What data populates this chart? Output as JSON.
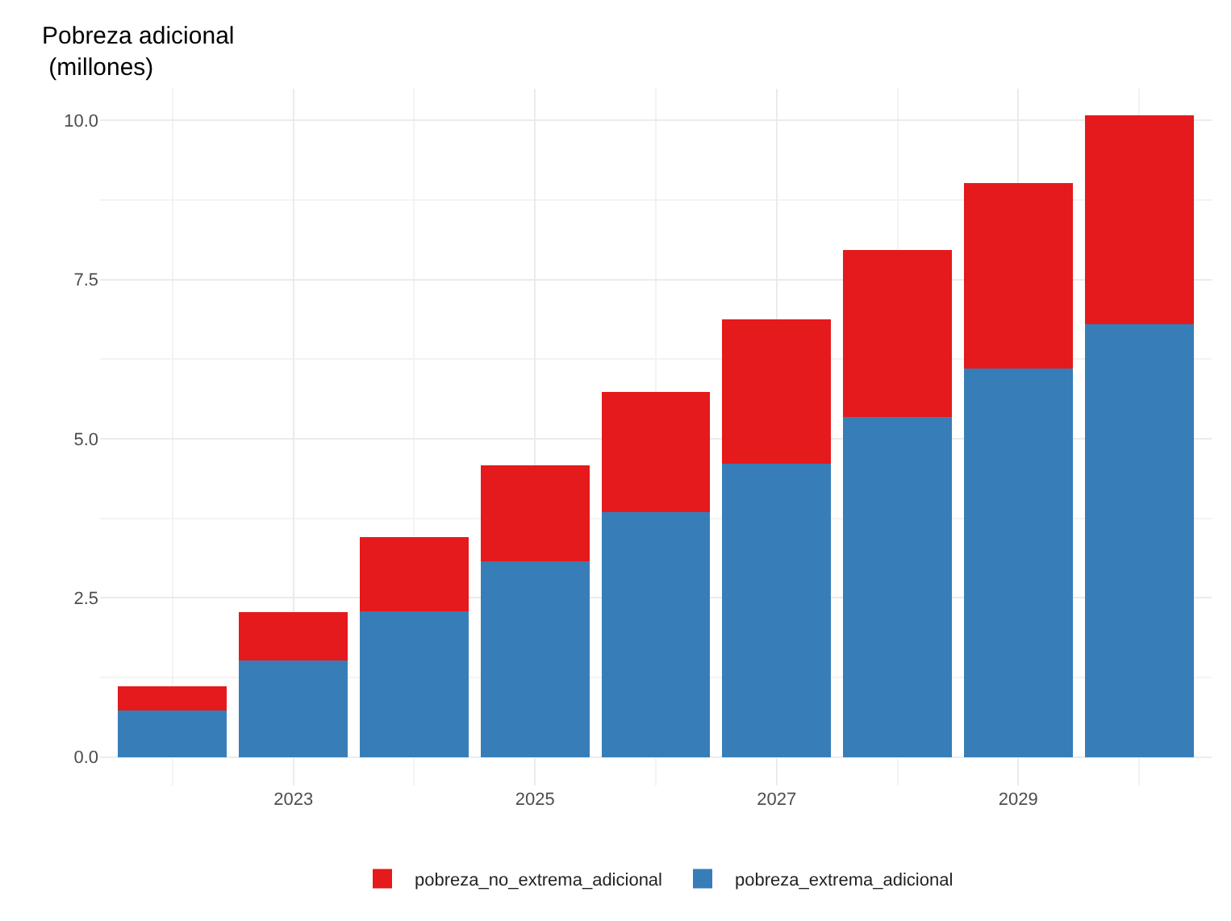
{
  "chart_data": {
    "type": "bar",
    "ylabel": "Pobreza adicional\n (millones)",
    "x": [
      2022,
      2023,
      2024,
      2025,
      2026,
      2027,
      2028,
      2029,
      2030
    ],
    "series": [
      {
        "name": "pobreza_extrema_adicional",
        "color": "#377eb8",
        "values": [
          0.73,
          1.51,
          2.29,
          3.07,
          3.85,
          4.61,
          5.34,
          6.1,
          6.8
        ]
      },
      {
        "name": "pobreza_no_extrema_adicional",
        "color": "#e41a1c",
        "values": [
          0.38,
          0.76,
          1.16,
          1.51,
          1.89,
          2.27,
          2.62,
          2.92,
          3.28
        ]
      }
    ],
    "stacked": true,
    "xlim": [
      2021.4,
      2030.6
    ],
    "xticks": [
      2023,
      2025,
      2027,
      2029
    ],
    "ylim": [
      -0.45,
      10.5
    ],
    "yticks": [
      {
        "value": 0,
        "label": "0.0"
      },
      {
        "value": 2.5,
        "label": "2.5"
      },
      {
        "value": 5,
        "label": "5.0"
      },
      {
        "value": 7.5,
        "label": "7.5"
      },
      {
        "value": 10,
        "label": "10.0"
      }
    ],
    "grid": true,
    "legend": "bottom"
  }
}
